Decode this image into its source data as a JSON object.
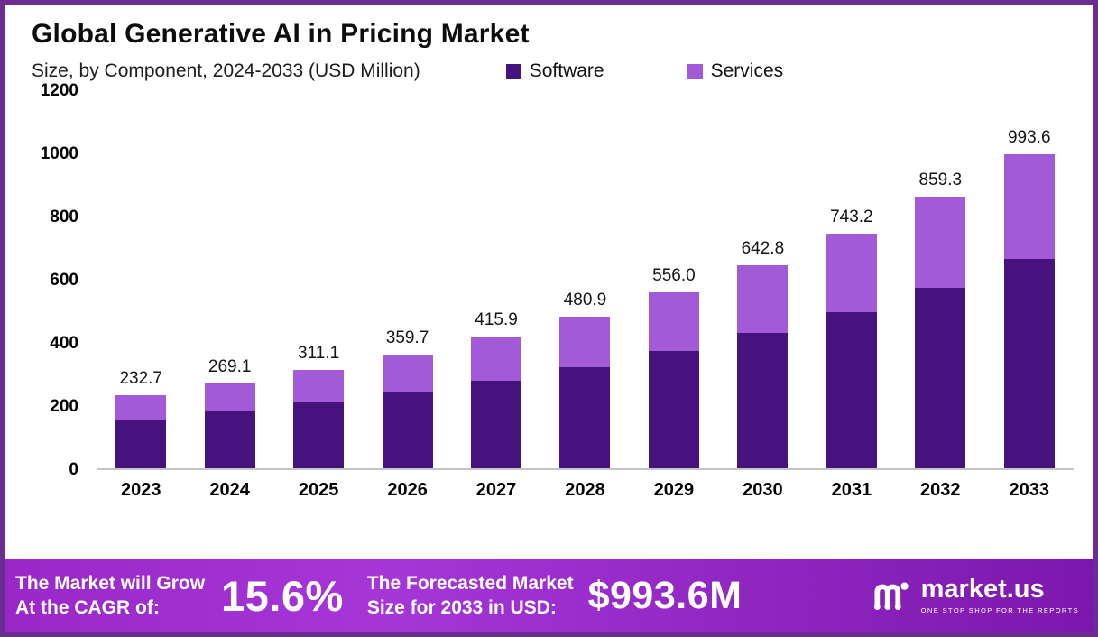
{
  "header": {
    "title": "Global Generative AI in Pricing Market",
    "subtitle": "Size, by Component, 2024-2033 (USD Million)"
  },
  "legend": {
    "items": [
      {
        "label": "Software",
        "color": "#45127e"
      },
      {
        "label": "Services",
        "color": "#a35ad6"
      }
    ]
  },
  "chart_data": {
    "type": "bar",
    "stacked": true,
    "title": "Global Generative AI in Pricing Market",
    "subtitle": "Size, by Component, 2024-2033 (USD Million)",
    "categories": [
      "2023",
      "2024",
      "2025",
      "2026",
      "2027",
      "2028",
      "2029",
      "2030",
      "2031",
      "2032",
      "2033"
    ],
    "series": [
      {
        "name": "Software",
        "color": "#45127e",
        "values": [
          155.1,
          179.4,
          207.4,
          239.8,
          277.3,
          320.6,
          370.7,
          428.5,
          495.5,
          572.9,
          662.4
        ]
      },
      {
        "name": "Services",
        "color": "#a35ad6",
        "values": [
          77.6,
          89.7,
          103.7,
          119.9,
          138.6,
          160.3,
          185.3,
          214.3,
          247.7,
          286.4,
          331.2
        ]
      }
    ],
    "totals": [
      232.7,
      269.1,
      311.1,
      359.7,
      415.9,
      480.9,
      556.0,
      642.8,
      743.2,
      859.3,
      993.6
    ],
    "total_labels": [
      "232.7",
      "269.1",
      "311.1",
      "359.7",
      "415.9",
      "480.9",
      "556.0",
      "642.8",
      "743.2",
      "859.3",
      "993.6"
    ],
    "ylim": [
      0,
      1200
    ],
    "yticks": [
      0,
      200,
      400,
      600,
      800,
      1000,
      1200
    ],
    "grid": false,
    "legend_position": "top"
  },
  "banner": {
    "cagr_line1": "The Market will Grow",
    "cagr_line2": "At the CAGR of:",
    "cagr_value": "15.6%",
    "forecast_line1": "The Forecasted Market",
    "forecast_line2": "Size for 2033 in USD:",
    "forecast_value": "$993.6M",
    "brand_name": "market.us",
    "brand_tagline": "ONE STOP SHOP FOR THE REPORTS"
  }
}
